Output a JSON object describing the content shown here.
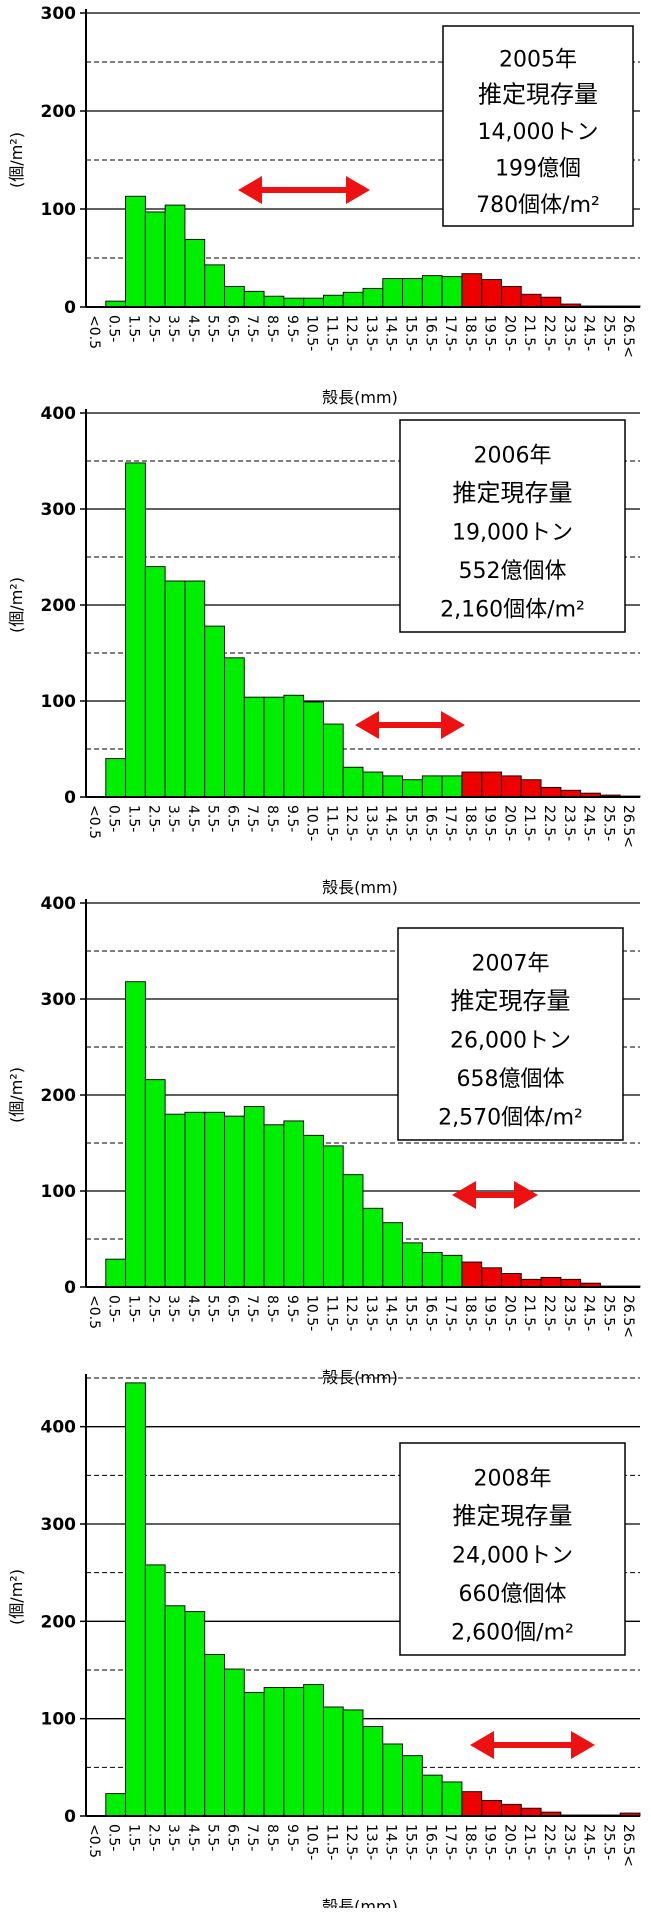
{
  "chart_data": [
    {
      "type": "bar",
      "categories": [
        "<0.5",
        "0.5-",
        "1.5-",
        "2.5-",
        "3.5-",
        "4.5-",
        "5.5-",
        "6.5-",
        "7.5-",
        "8.5-",
        "9.5-",
        "10.5-",
        "11.5-",
        "12.5-",
        "13.5-",
        "14.5-",
        "15.5-",
        "16.5-",
        "17.5-",
        "18.5-",
        "19.5-",
        "20.5-",
        "21.5-",
        "22.5-",
        "23.5-",
        "24.5-",
        "25.5-",
        "26.5<"
      ],
      "values": [
        0,
        6,
        113,
        97,
        104,
        69,
        43,
        21,
        16,
        11,
        9,
        9,
        12,
        15,
        19,
        29,
        29,
        32,
        31,
        34,
        28,
        21,
        13,
        10,
        3,
        1,
        1,
        1
      ],
      "highlight_from_index": 19,
      "colors": {
        "bar": "#00ee00",
        "highlight": "#ee0000",
        "arrow": "#ee1111"
      },
      "ylim": [
        0,
        300
      ],
      "yticks": [
        "0",
        "100",
        "200",
        "300"
      ],
      "ylabel": "(個/m²)",
      "xlabel": "殻長(mm)",
      "annotation": [
        "2005年",
        "推定現存量",
        "14,000トン",
        "199億個",
        "780個体/m²"
      ]
    },
    {
      "type": "bar",
      "categories": [
        "<0.5",
        "0.5-",
        "1.5-",
        "2.5-",
        "3.5-",
        "4.5-",
        "5.5-",
        "6.5-",
        "7.5-",
        "8.5-",
        "9.5-",
        "10.5-",
        "11.5-",
        "12.5-",
        "13.5-",
        "14.5-",
        "15.5-",
        "16.5-",
        "17.5-",
        "18.5-",
        "19.5-",
        "20.5-",
        "21.5-",
        "22.5-",
        "23.5-",
        "24.5-",
        "25.5-",
        "26.5<"
      ],
      "values": [
        0,
        40,
        348,
        240,
        225,
        225,
        178,
        145,
        104,
        104,
        106,
        99,
        76,
        31,
        26,
        22,
        18,
        22,
        22,
        26,
        26,
        22,
        18,
        10,
        7,
        4,
        2,
        1
      ],
      "highlight_from_index": 19,
      "colors": {
        "bar": "#00ee00",
        "highlight": "#ee0000",
        "arrow": "#ee1111"
      },
      "ylim": [
        0,
        400
      ],
      "yticks": [
        "0",
        "100",
        "200",
        "300",
        "400"
      ],
      "ylabel": "(個/m²)",
      "xlabel": "殻長(mm)",
      "annotation": [
        "2006年",
        "推定現存量",
        "19,000トン",
        "552億個体",
        "2,160個体/m²"
      ]
    },
    {
      "type": "bar",
      "categories": [
        "<0.5",
        "0.5-",
        "1.5-",
        "2.5-",
        "3.5-",
        "4.5-",
        "5.5-",
        "6.5-",
        "7.5-",
        "8.5-",
        "9.5-",
        "10.5-",
        "11.5-",
        "12.5-",
        "13.5-",
        "14.5-",
        "15.5-",
        "16.5-",
        "17.5-",
        "18.5-",
        "19.5-",
        "20.5-",
        "21.5-",
        "22.5-",
        "23.5-",
        "24.5-",
        "25.5-",
        "26.5<"
      ],
      "values": [
        0,
        29,
        318,
        216,
        180,
        182,
        182,
        178,
        188,
        169,
        173,
        158,
        147,
        117,
        82,
        67,
        46,
        36,
        33,
        26,
        20,
        14,
        8,
        10,
        8,
        4,
        1,
        1
      ],
      "highlight_from_index": 19,
      "colors": {
        "bar": "#00ee00",
        "highlight": "#ee0000",
        "arrow": "#ee1111"
      },
      "ylim": [
        0,
        400
      ],
      "yticks": [
        "0",
        "100",
        "200",
        "300",
        "400"
      ],
      "ylabel": "(個/m²)",
      "xlabel": "殻長(mm)",
      "annotation": [
        "2007年",
        "推定現存量",
        "26,000トン",
        "658億個体",
        "2,570個体/m²"
      ]
    },
    {
      "type": "bar",
      "categories": [
        "<0.5",
        "0.5-",
        "1.5-",
        "2.5-",
        "3.5-",
        "4.5-",
        "5.5-",
        "6.5-",
        "7.5-",
        "8.5-",
        "9.5-",
        "10.5-",
        "11.5-",
        "12.5-",
        "13.5-",
        "14.5-",
        "15.5-",
        "16.5-",
        "17.5-",
        "18.5-",
        "19.5-",
        "20.5-",
        "21.5-",
        "22.5-",
        "23.5-",
        "24.5-",
        "25.5-",
        "26.5<"
      ],
      "values": [
        0,
        23,
        445,
        258,
        216,
        210,
        166,
        151,
        127,
        132,
        132,
        135,
        112,
        109,
        92,
        74,
        62,
        42,
        35,
        25,
        16,
        12,
        8,
        4,
        1,
        1,
        1,
        3
      ],
      "highlight_from_index": 19,
      "colors": {
        "bar": "#00ee00",
        "highlight": "#ee0000",
        "arrow": "#ee1111"
      },
      "ylim": [
        0,
        450
      ],
      "yticks": [
        "0",
        "100",
        "200",
        "300",
        "400"
      ],
      "ylabel": "(個/m²)",
      "xlabel": "殻長(mm)",
      "annotation": [
        "2008年",
        "推定現存量",
        "24,000トン",
        "660億個体",
        "2,600個/m²"
      ]
    }
  ]
}
